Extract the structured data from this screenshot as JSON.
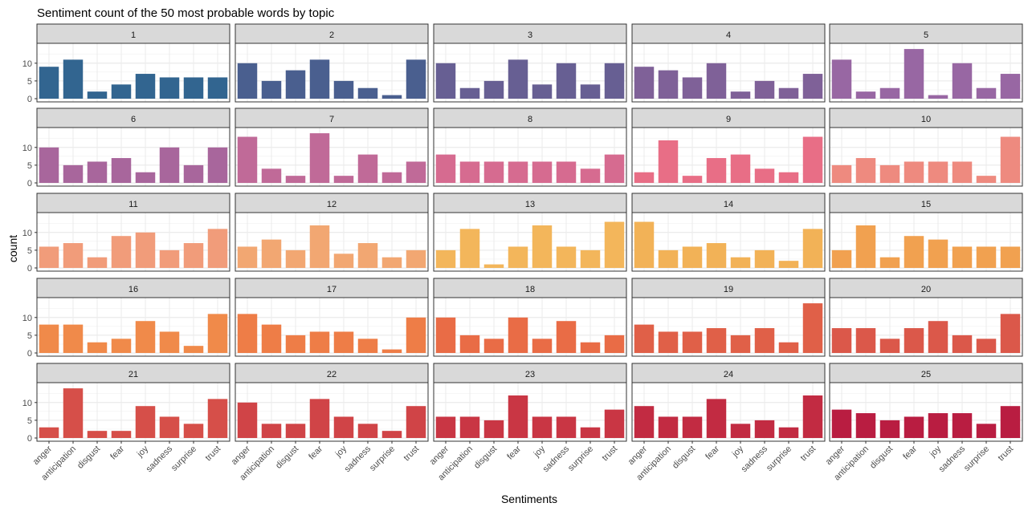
{
  "chart_data": {
    "type": "bar",
    "title": "Sentiment count of the 50 most probable words by topic",
    "xlabel": "Sentiments",
    "ylabel": "count",
    "categories": [
      "anger",
      "anticipation",
      "disgust",
      "fear",
      "joy",
      "sadness",
      "surprise",
      "trust"
    ],
    "y_ticks": [
      "0",
      "5",
      "10"
    ],
    "ylim": [
      0,
      14.7
    ],
    "grid": true,
    "layout": "facet-grid 5 columns x 5 rows",
    "panels": [
      {
        "name": "1",
        "color": "#326590",
        "values": [
          9,
          11,
          2,
          4,
          7,
          6,
          6,
          6
        ]
      },
      {
        "name": "2",
        "color": "#4a5f8f",
        "values": [
          10,
          5,
          8,
          11,
          5,
          3,
          1,
          11
        ]
      },
      {
        "name": "3",
        "color": "#675f93",
        "values": [
          10,
          3,
          5,
          11,
          4,
          10,
          4,
          10
        ]
      },
      {
        "name": "4",
        "color": "#7f6198",
        "values": [
          9,
          8,
          6,
          10,
          2,
          5,
          3,
          7
        ]
      },
      {
        "name": "5",
        "color": "#9867a3",
        "values": [
          11,
          2,
          3,
          14,
          1,
          10,
          3,
          7
        ]
      },
      {
        "name": "6",
        "color": "#a8669c",
        "values": [
          10,
          5,
          6,
          7,
          3,
          10,
          5,
          10
        ]
      },
      {
        "name": "7",
        "color": "#c06a98",
        "values": [
          13,
          4,
          2,
          14,
          2,
          8,
          3,
          6
        ]
      },
      {
        "name": "8",
        "color": "#d66b90",
        "values": [
          8,
          6,
          6,
          6,
          6,
          6,
          4,
          8
        ]
      },
      {
        "name": "9",
        "color": "#e86e86",
        "values": [
          3,
          12,
          2,
          7,
          8,
          4,
          3,
          13
        ]
      },
      {
        "name": "10",
        "color": "#ee8a7f",
        "values": [
          5,
          7,
          5,
          6,
          6,
          6,
          2,
          13
        ]
      },
      {
        "name": "11",
        "color": "#f19c7a",
        "values": [
          6,
          7,
          3,
          9,
          10,
          5,
          7,
          11
        ]
      },
      {
        "name": "12",
        "color": "#f2a772",
        "values": [
          6,
          8,
          5,
          12,
          4,
          7,
          3,
          5
        ]
      },
      {
        "name": "13",
        "color": "#f3b65b",
        "values": [
          5,
          11,
          1,
          6,
          12,
          6,
          5,
          13
        ]
      },
      {
        "name": "14",
        "color": "#f2b257",
        "values": [
          13,
          5,
          6,
          7,
          3,
          5,
          2,
          11
        ]
      },
      {
        "name": "15",
        "color": "#f1a150",
        "values": [
          5,
          12,
          3,
          9,
          8,
          6,
          6,
          6
        ]
      },
      {
        "name": "16",
        "color": "#f08a4a",
        "values": [
          8,
          8,
          3,
          4,
          9,
          6,
          2,
          11
        ]
      },
      {
        "name": "17",
        "color": "#ee7d47",
        "values": [
          11,
          8,
          5,
          6,
          6,
          4,
          1,
          10
        ]
      },
      {
        "name": "18",
        "color": "#e96c46",
        "values": [
          10,
          5,
          4,
          10,
          4,
          9,
          3,
          5
        ]
      },
      {
        "name": "19",
        "color": "#e06048",
        "values": [
          8,
          6,
          6,
          7,
          5,
          7,
          3,
          14
        ]
      },
      {
        "name": "20",
        "color": "#db584a",
        "values": [
          7,
          7,
          4,
          7,
          9,
          5,
          4,
          11
        ]
      },
      {
        "name": "21",
        "color": "#d64f49",
        "values": [
          3,
          14,
          2,
          2,
          9,
          6,
          4,
          11
        ]
      },
      {
        "name": "22",
        "color": "#d04447",
        "values": [
          10,
          4,
          4,
          11,
          6,
          4,
          2,
          9
        ]
      },
      {
        "name": "23",
        "color": "#c93644",
        "values": [
          6,
          6,
          5,
          12,
          6,
          6,
          3,
          8
        ]
      },
      {
        "name": "24",
        "color": "#c22b42",
        "values": [
          9,
          6,
          6,
          11,
          4,
          5,
          3,
          12
        ]
      },
      {
        "name": "25",
        "color": "#b91d41",
        "values": [
          8,
          7,
          5,
          6,
          7,
          7,
          4,
          9
        ]
      }
    ]
  }
}
